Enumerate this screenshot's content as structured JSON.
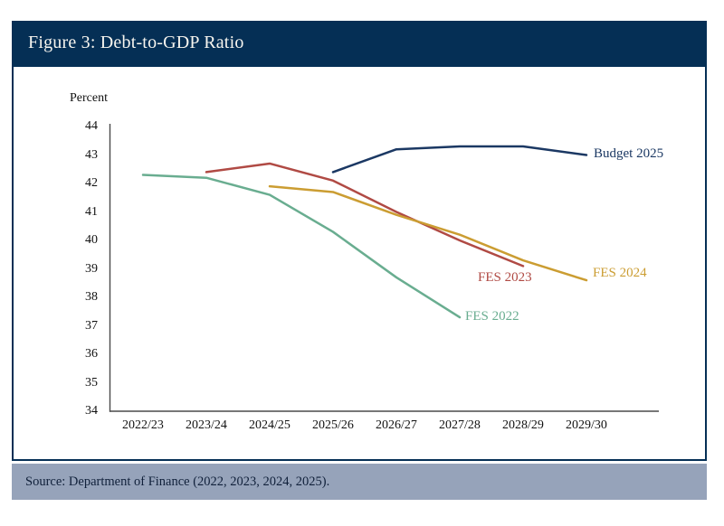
{
  "figure": {
    "title": "Figure 3: Debt-to-GDP Ratio",
    "axis_unit_label": "Percent",
    "source": "Source: Department of Finance (2022, 2023, 2024, 2025)."
  },
  "colors": {
    "header_navy": "#052f55",
    "panel_border": "#052f55",
    "source_bar_bg": "#96a3ba",
    "axis_line": "#4a4a4a",
    "title_text": "#f7f5ef",
    "source_text": "#10203a"
  },
  "chart_data": {
    "type": "line",
    "title": "Figure 3: Debt-to-GDP Ratio",
    "ylabel": "Percent",
    "ylim": [
      34,
      44
    ],
    "y_ticks": [
      "44",
      "43",
      "42",
      "41",
      "40",
      "39",
      "38",
      "37",
      "36",
      "35",
      "34"
    ],
    "categories": [
      "2022/23",
      "2023/24",
      "2024/25",
      "2025/26",
      "2026/27",
      "2027/28",
      "2028/29",
      "2029/30"
    ],
    "grid": false,
    "legend_position": "line-end-labels",
    "series": [
      {
        "name": "FES 2022",
        "color": "#69ad90",
        "start_index": 0,
        "values": [
          42.3,
          42.2,
          41.6,
          40.3,
          38.7,
          37.3
        ]
      },
      {
        "name": "FES 2023",
        "color": "#b04a44",
        "start_index": 1,
        "values": [
          42.4,
          42.7,
          42.1,
          41.0,
          40.0,
          39.1
        ]
      },
      {
        "name": "FES 2024",
        "color": "#cb9d32",
        "start_index": 2,
        "values": [
          41.9,
          41.7,
          40.9,
          40.2,
          39.3,
          38.6
        ]
      },
      {
        "name": "Budget 2025",
        "color": "#1b3863",
        "start_index": 3,
        "values": [
          42.4,
          43.2,
          43.3,
          43.3,
          43.0
        ]
      }
    ]
  }
}
